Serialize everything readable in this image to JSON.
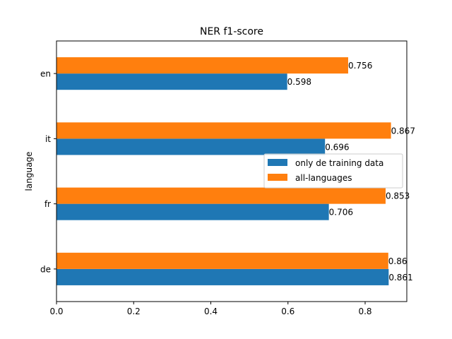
{
  "chart_data": {
    "type": "bar",
    "orientation": "horizontal",
    "title": "NER f1-score",
    "xlabel": "",
    "ylabel": "language",
    "categories": [
      "de",
      "fr",
      "it",
      "en"
    ],
    "xlim": [
      0,
      0.908
    ],
    "xticks": [
      0.0,
      0.2,
      0.4,
      0.6,
      0.8
    ],
    "xtick_labels": [
      "0.0",
      "0.2",
      "0.4",
      "0.6",
      "0.8"
    ],
    "grid": false,
    "legend_position": "center-right",
    "series": [
      {
        "name": "only de training data",
        "color": "#1f77b4",
        "values": [
          0.861,
          0.706,
          0.696,
          0.598
        ],
        "labels": [
          "0.861",
          "0.706",
          "0.696",
          "0.598"
        ]
      },
      {
        "name": "all-languages",
        "color": "#ff7f0e",
        "values": [
          0.86,
          0.853,
          0.867,
          0.756
        ],
        "labels": [
          "0.86",
          "0.853",
          "0.867",
          "0.756"
        ]
      }
    ]
  }
}
